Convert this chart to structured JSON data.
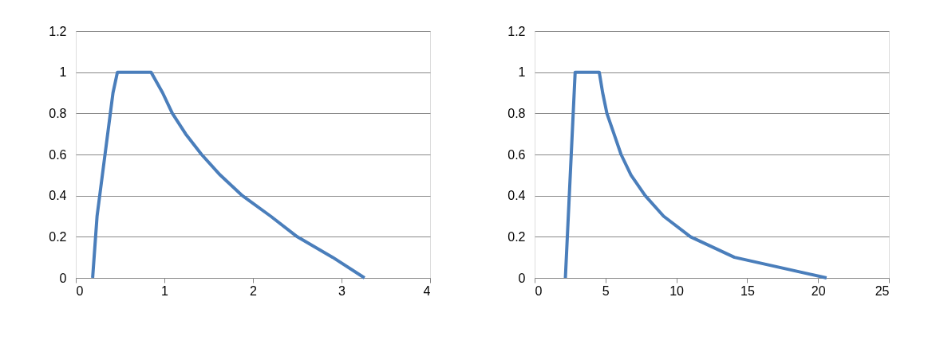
{
  "chart_data": [
    {
      "type": "line",
      "x": [
        0.19,
        0.24,
        0.3,
        0.39,
        0.42,
        0.47,
        0.85,
        0.98,
        1.09,
        1.24,
        1.42,
        1.63,
        1.88,
        2.2,
        2.5,
        2.9,
        3.26
      ],
      "series": [
        {
          "color": "#4a7ebb",
          "values": [
            0,
            0.3,
            0.5,
            0.8,
            0.9,
            1,
            1,
            0.9,
            0.8,
            0.7,
            0.6,
            0.5,
            0.4,
            0.3,
            0.2,
            0.1,
            0
          ]
        }
      ],
      "xlim": [
        0,
        4
      ],
      "xticks": [
        0,
        1,
        2,
        3,
        4
      ],
      "ylim": [
        0,
        1.2
      ],
      "yticks": [
        0,
        0.2,
        0.4,
        0.6,
        0.8,
        1,
        1.2
      ],
      "grid": "y"
    },
    {
      "type": "line",
      "x": [
        2.17,
        2.86,
        4.56,
        4.8,
        5.1,
        5.6,
        6.1,
        6.8,
        7.8,
        9.1,
        11,
        14.1,
        20.6
      ],
      "series": [
        {
          "color": "#4a7ebb",
          "values": [
            0,
            1,
            1,
            0.9,
            0.8,
            0.7,
            0.6,
            0.5,
            0.4,
            0.3,
            0.2,
            0.1,
            0
          ]
        }
      ],
      "xlim": [
        0,
        25
      ],
      "xticks": [
        0,
        5,
        10,
        15,
        20,
        25
      ],
      "ylim": [
        0,
        1.2
      ],
      "yticks": [
        0,
        0.2,
        0.4,
        0.6,
        0.8,
        1,
        1.2
      ],
      "grid": "y"
    }
  ]
}
